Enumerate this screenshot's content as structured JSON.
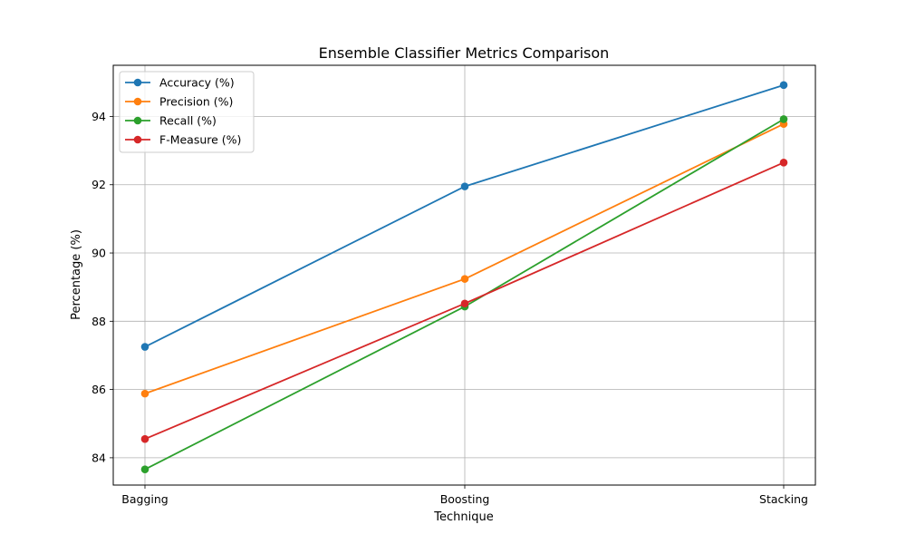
{
  "chart_data": {
    "type": "line",
    "title": "Ensemble Classifier Metrics Comparison",
    "xlabel": "Technique",
    "ylabel": "Percentage (%)",
    "categories": [
      "Bagging",
      "Boosting",
      "Stacking"
    ],
    "ylim": [
      83.2,
      95.5
    ],
    "yticks": [
      84,
      86,
      88,
      90,
      92,
      94
    ],
    "grid": true,
    "legend_position": "top-left",
    "markers": "circle",
    "series": [
      {
        "name": "Accuracy (%)",
        "color": "#1f77b4",
        "values": [
          87.25,
          91.95,
          94.92
        ]
      },
      {
        "name": "Precision (%)",
        "color": "#ff7f0e",
        "values": [
          85.88,
          89.24,
          93.78
        ]
      },
      {
        "name": "Recall (%)",
        "color": "#2ca02c",
        "values": [
          83.66,
          88.43,
          93.92
        ]
      },
      {
        "name": "F-Measure (%)",
        "color": "#d62728",
        "values": [
          84.55,
          88.52,
          92.65
        ]
      }
    ]
  }
}
